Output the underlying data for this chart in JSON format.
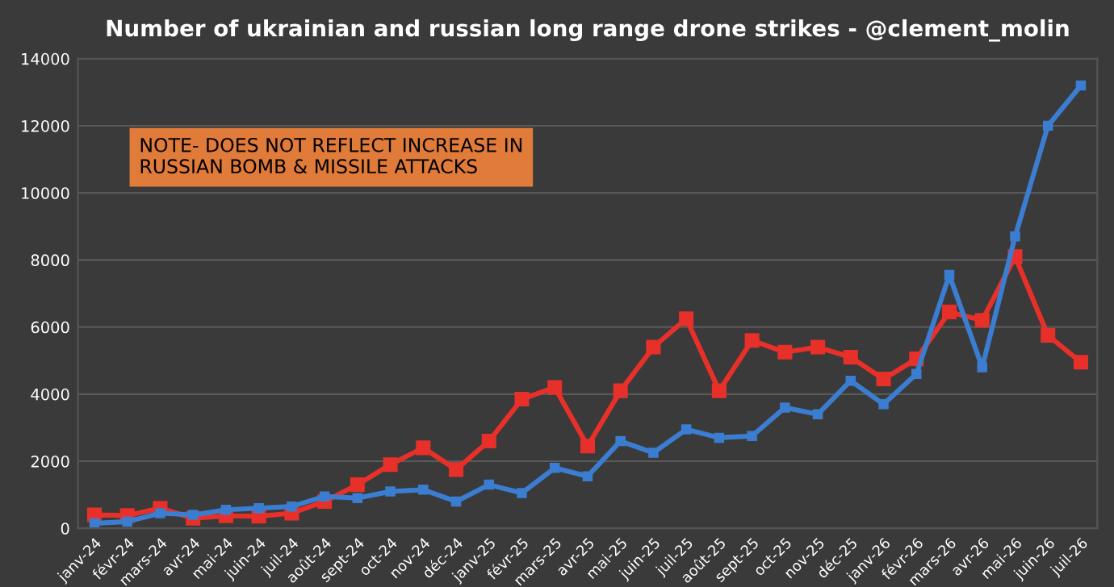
{
  "chart_data": {
    "type": "line",
    "title": "Number of ukrainian and russian long range drone strikes - @clement_molin",
    "categories": [
      "janv-24",
      "févr-24",
      "mars-24",
      "avr-24",
      "mai-24",
      "juin-24",
      "juil-24",
      "août-24",
      "sept-24",
      "oct-24",
      "nov-24",
      "déc-24",
      "janv-25",
      "févr-25",
      "mars-25",
      "avr-25",
      "mai-25",
      "juin-25",
      "juil-25",
      "août-25",
      "sept-25",
      "oct-25",
      "nov-25",
      "déc-25",
      "janv-26",
      "févr-26",
      "mars-26",
      "avr-26",
      "mai-26",
      "juin-26",
      "juil-26"
    ],
    "series": [
      {
        "color": "#e8302a",
        "values": [
          400,
          380,
          600,
          300,
          370,
          360,
          450,
          800,
          1300,
          1900,
          2400,
          1750,
          2600,
          3850,
          4200,
          2450,
          4100,
          5400,
          6250,
          4100,
          5600,
          5250,
          5400,
          5100,
          4450,
          5050,
          6450,
          6200,
          8100,
          5750,
          4950
        ]
      },
      {
        "color": "#3b7dd0",
        "values": [
          150,
          200,
          450,
          400,
          550,
          600,
          650,
          950,
          900,
          1100,
          1150,
          800,
          1300,
          1050,
          1800,
          1550,
          2600,
          2250,
          2950,
          2700,
          2750,
          3600,
          3400,
          4400,
          3700,
          4600,
          7550,
          4800,
          8700,
          12000,
          13200
        ]
      }
    ],
    "ylim": [
      0,
      14000
    ],
    "yticks": [
      0,
      2000,
      4000,
      6000,
      8000,
      10000,
      12000,
      14000
    ],
    "grid": "y",
    "marker": "square",
    "line_style": "solid",
    "legend": false,
    "annotations": [
      "NOTE- DOES NOT REFLECT INCREASE IN\nRUSSIAN BOMB & MISSILE ATTACKS"
    ]
  }
}
